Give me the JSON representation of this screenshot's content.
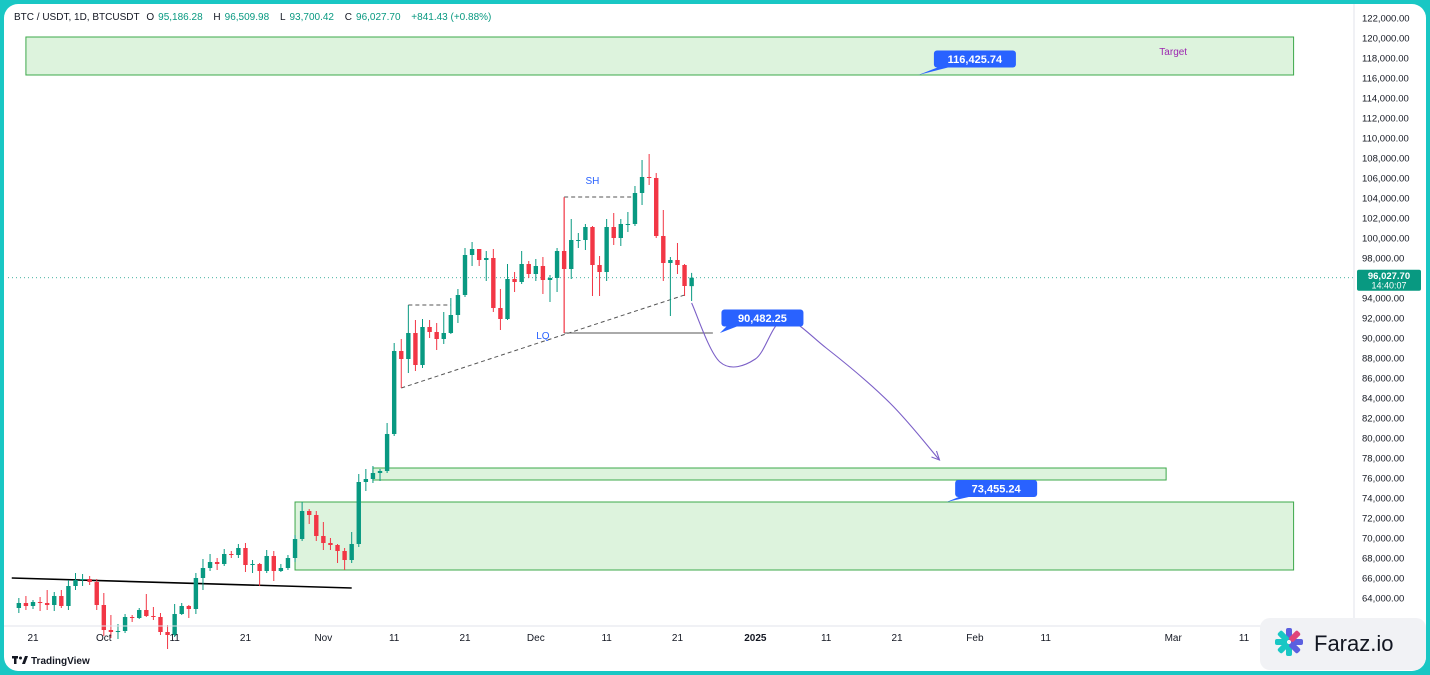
{
  "header": {
    "symbol": "BTC / USDT, 1D, BTCUSDT",
    "open_label": "O",
    "open": "95,186.28",
    "high_label": "H",
    "high": "96,509.98",
    "low_label": "L",
    "low": "93,700.42",
    "close_label": "C",
    "close": "96,027.70",
    "change": "+841.43 (+0.88%)"
  },
  "brand": {
    "tradingview": "TradingView",
    "watermark": "Faraz.io",
    "watermark_icon": "faraz-logo-icon",
    "tv_icon": "tradingview-logo-icon"
  },
  "colors": {
    "up": "#089981",
    "down": "#f23645",
    "zone_fill": "#d9f2d9",
    "zone_stroke": "#3ca84a",
    "label_bg": "#2962ff",
    "path": "#7b5fc7",
    "target_text": "#9c27b0",
    "lq_text": "#2962ff",
    "sh_text": "#2962ff"
  },
  "chart_data": {
    "type": "candlestick",
    "yaxis": {
      "range": [
        63000,
        122500
      ],
      "ticks": [
        "64,000.00",
        "66,000.00",
        "68,000.00",
        "70,000.00",
        "72,000.00",
        "74,000.00",
        "76,000.00",
        "78,000.00",
        "80,000.00",
        "82,000.00",
        "84,000.00",
        "86,000.00",
        "88,000.00",
        "90,000.00",
        "92,000.00",
        "94,000.00",
        "96,000.00",
        "98,000.00",
        "100,000.00",
        "102,000.00",
        "104,000.00",
        "106,000.00",
        "108,000.00",
        "110,000.00",
        "112,000.00",
        "114,000.00",
        "116,000.00",
        "118,000.00",
        "120,000.00",
        "122,000.00"
      ]
    },
    "xaxis": {
      "ticks": [
        {
          "date": "2024-09-21",
          "label": "21"
        },
        {
          "date": "2024-10-01",
          "label": "Oct"
        },
        {
          "date": "2024-10-11",
          "label": "11"
        },
        {
          "date": "2024-10-21",
          "label": "21"
        },
        {
          "date": "2024-11-01",
          "label": "Nov"
        },
        {
          "date": "2024-11-11",
          "label": "11"
        },
        {
          "date": "2024-11-21",
          "label": "21"
        },
        {
          "date": "2024-12-01",
          "label": "Dec"
        },
        {
          "date": "2024-12-11",
          "label": "11"
        },
        {
          "date": "2024-12-21",
          "label": "21"
        },
        {
          "date": "2025-01-01",
          "label": "2025",
          "bold": true
        },
        {
          "date": "2025-01-11",
          "label": "11"
        },
        {
          "date": "2025-01-21",
          "label": "21"
        },
        {
          "date": "2025-02-01",
          "label": "Feb"
        },
        {
          "date": "2025-02-11",
          "label": "11"
        },
        {
          "date": "2025-03-01",
          "label": "Mar"
        },
        {
          "date": "2025-03-11",
          "label": "11"
        }
      ]
    },
    "candles": [
      {
        "d": "2024-09-19",
        "o": 63000,
        "h": 64000,
        "l": 62500,
        "c": 63500
      },
      {
        "d": "2024-09-20",
        "o": 63500,
        "h": 64200,
        "l": 62800,
        "c": 63200
      },
      {
        "d": "2024-09-21",
        "o": 63200,
        "h": 63800,
        "l": 62900,
        "c": 63600
      },
      {
        "d": "2024-09-22",
        "o": 63600,
        "h": 64100,
        "l": 62700,
        "c": 63500
      },
      {
        "d": "2024-09-23",
        "o": 63500,
        "h": 64800,
        "l": 62800,
        "c": 63300
      },
      {
        "d": "2024-09-24",
        "o": 63300,
        "h": 64600,
        "l": 62700,
        "c": 64200
      },
      {
        "d": "2024-09-25",
        "o": 64200,
        "h": 64800,
        "l": 63000,
        "c": 63200
      },
      {
        "d": "2024-09-26",
        "o": 63200,
        "h": 65800,
        "l": 62800,
        "c": 65200
      },
      {
        "d": "2024-09-27",
        "o": 65200,
        "h": 66500,
        "l": 64800,
        "c": 65800
      },
      {
        "d": "2024-09-28",
        "o": 65800,
        "h": 66400,
        "l": 65200,
        "c": 65900
      },
      {
        "d": "2024-09-29",
        "o": 65900,
        "h": 66200,
        "l": 65300,
        "c": 65600
      },
      {
        "d": "2024-09-30",
        "o": 65600,
        "h": 65900,
        "l": 62800,
        "c": 63300
      },
      {
        "d": "2024-10-01",
        "o": 63300,
        "h": 64500,
        "l": 60200,
        "c": 60800
      },
      {
        "d": "2024-10-02",
        "o": 60800,
        "h": 62300,
        "l": 60000,
        "c": 60600
      },
      {
        "d": "2024-10-03",
        "o": 60600,
        "h": 61400,
        "l": 59900,
        "c": 60700
      },
      {
        "d": "2024-10-04",
        "o": 60700,
        "h": 62400,
        "l": 60500,
        "c": 62100
      },
      {
        "d": "2024-10-05",
        "o": 62100,
        "h": 62300,
        "l": 61600,
        "c": 62000
      },
      {
        "d": "2024-10-06",
        "o": 62000,
        "h": 63000,
        "l": 61900,
        "c": 62800
      },
      {
        "d": "2024-10-07",
        "o": 62800,
        "h": 64400,
        "l": 62100,
        "c": 62200
      },
      {
        "d": "2024-10-08",
        "o": 62200,
        "h": 63100,
        "l": 61800,
        "c": 62100
      },
      {
        "d": "2024-10-09",
        "o": 62100,
        "h": 62500,
        "l": 60300,
        "c": 60600
      },
      {
        "d": "2024-10-10",
        "o": 60600,
        "h": 61300,
        "l": 58900,
        "c": 60300
      },
      {
        "d": "2024-10-11",
        "o": 60300,
        "h": 63400,
        "l": 60100,
        "c": 62400
      },
      {
        "d": "2024-10-12",
        "o": 62400,
        "h": 63500,
        "l": 62300,
        "c": 63200
      },
      {
        "d": "2024-10-13",
        "o": 63200,
        "h": 63300,
        "l": 62000,
        "c": 62900
      },
      {
        "d": "2024-10-14",
        "o": 62900,
        "h": 66500,
        "l": 62400,
        "c": 66000
      },
      {
        "d": "2024-10-15",
        "o": 66000,
        "h": 67900,
        "l": 64800,
        "c": 67000
      },
      {
        "d": "2024-10-16",
        "o": 67000,
        "h": 68400,
        "l": 66700,
        "c": 67600
      },
      {
        "d": "2024-10-17",
        "o": 67600,
        "h": 68000,
        "l": 66800,
        "c": 67400
      },
      {
        "d": "2024-10-18",
        "o": 67400,
        "h": 68900,
        "l": 67200,
        "c": 68400
      },
      {
        "d": "2024-10-19",
        "o": 68400,
        "h": 68700,
        "l": 68000,
        "c": 68300
      },
      {
        "d": "2024-10-20",
        "o": 68300,
        "h": 69400,
        "l": 68000,
        "c": 69000
      },
      {
        "d": "2024-10-21",
        "o": 69000,
        "h": 69500,
        "l": 66600,
        "c": 67300
      },
      {
        "d": "2024-10-22",
        "o": 67300,
        "h": 67800,
        "l": 66500,
        "c": 67400
      },
      {
        "d": "2024-10-23",
        "o": 67400,
        "h": 67500,
        "l": 65200,
        "c": 66700
      },
      {
        "d": "2024-10-24",
        "o": 66700,
        "h": 68800,
        "l": 66500,
        "c": 68200
      },
      {
        "d": "2024-10-25",
        "o": 68200,
        "h": 68700,
        "l": 65700,
        "c": 66700
      },
      {
        "d": "2024-10-26",
        "o": 66700,
        "h": 67400,
        "l": 66600,
        "c": 67000
      },
      {
        "d": "2024-10-27",
        "o": 67000,
        "h": 68300,
        "l": 66800,
        "c": 68000
      },
      {
        "d": "2024-10-28",
        "o": 68000,
        "h": 70300,
        "l": 67600,
        "c": 69900
      },
      {
        "d": "2024-10-29",
        "o": 69900,
        "h": 73600,
        "l": 69700,
        "c": 72700
      },
      {
        "d": "2024-10-30",
        "o": 72700,
        "h": 72900,
        "l": 71400,
        "c": 72300
      },
      {
        "d": "2024-10-31",
        "o": 72300,
        "h": 72700,
        "l": 69700,
        "c": 70200
      },
      {
        "d": "2024-11-01",
        "o": 70200,
        "h": 71600,
        "l": 68800,
        "c": 69500
      },
      {
        "d": "2024-11-02",
        "o": 69500,
        "h": 70000,
        "l": 68800,
        "c": 69300
      },
      {
        "d": "2024-11-03",
        "o": 69300,
        "h": 69400,
        "l": 67500,
        "c": 68700
      },
      {
        "d": "2024-11-04",
        "o": 68700,
        "h": 69000,
        "l": 66800,
        "c": 67800
      },
      {
        "d": "2024-11-05",
        "o": 67800,
        "h": 70600,
        "l": 67500,
        "c": 69400
      },
      {
        "d": "2024-11-06",
        "o": 69400,
        "h": 76400,
        "l": 69100,
        "c": 75600
      },
      {
        "d": "2024-11-07",
        "o": 75600,
        "h": 76900,
        "l": 74700,
        "c": 75900
      },
      {
        "d": "2024-11-08",
        "o": 75900,
        "h": 77200,
        "l": 75500,
        "c": 76500
      },
      {
        "d": "2024-11-09",
        "o": 76500,
        "h": 76900,
        "l": 75700,
        "c": 76700
      },
      {
        "d": "2024-11-10",
        "o": 76700,
        "h": 81500,
        "l": 76500,
        "c": 80400
      },
      {
        "d": "2024-11-11",
        "o": 80400,
        "h": 89500,
        "l": 80200,
        "c": 88700
      },
      {
        "d": "2024-11-12",
        "o": 88700,
        "h": 89900,
        "l": 85000,
        "c": 87900
      },
      {
        "d": "2024-11-13",
        "o": 87900,
        "h": 93300,
        "l": 86500,
        "c": 90500
      },
      {
        "d": "2024-11-14",
        "o": 90500,
        "h": 91800,
        "l": 86700,
        "c": 87300
      },
      {
        "d": "2024-11-15",
        "o": 87300,
        "h": 91900,
        "l": 87000,
        "c": 91100
      },
      {
        "d": "2024-11-16",
        "o": 91100,
        "h": 91800,
        "l": 90000,
        "c": 90600
      },
      {
        "d": "2024-11-17",
        "o": 90600,
        "h": 91500,
        "l": 88800,
        "c": 89900
      },
      {
        "d": "2024-11-18",
        "o": 89900,
        "h": 92600,
        "l": 89400,
        "c": 90500
      },
      {
        "d": "2024-11-19",
        "o": 90500,
        "h": 94000,
        "l": 90400,
        "c": 92300
      },
      {
        "d": "2024-11-20",
        "o": 92300,
        "h": 94900,
        "l": 91500,
        "c": 94300
      },
      {
        "d": "2024-11-21",
        "o": 94300,
        "h": 99000,
        "l": 94100,
        "c": 98300
      },
      {
        "d": "2024-11-22",
        "o": 98300,
        "h": 99600,
        "l": 97200,
        "c": 98900
      },
      {
        "d": "2024-11-23",
        "o": 98900,
        "h": 98900,
        "l": 97200,
        "c": 97800
      },
      {
        "d": "2024-11-24",
        "o": 97800,
        "h": 98700,
        "l": 95700,
        "c": 98000
      },
      {
        "d": "2024-11-25",
        "o": 98000,
        "h": 98900,
        "l": 92600,
        "c": 93000
      },
      {
        "d": "2024-11-26",
        "o": 93000,
        "h": 94900,
        "l": 90800,
        "c": 91900
      },
      {
        "d": "2024-11-27",
        "o": 91900,
        "h": 97400,
        "l": 91800,
        "c": 95900
      },
      {
        "d": "2024-11-28",
        "o": 95900,
        "h": 96600,
        "l": 94600,
        "c": 95600
      },
      {
        "d": "2024-11-29",
        "o": 95600,
        "h": 98700,
        "l": 95400,
        "c": 97400
      },
      {
        "d": "2024-11-30",
        "o": 97400,
        "h": 97700,
        "l": 96000,
        "c": 96400
      },
      {
        "d": "2024-12-01",
        "o": 96400,
        "h": 97900,
        "l": 95700,
        "c": 97200
      },
      {
        "d": "2024-12-02",
        "o": 97200,
        "h": 98100,
        "l": 94400,
        "c": 95800
      },
      {
        "d": "2024-12-03",
        "o": 95800,
        "h": 96300,
        "l": 93600,
        "c": 96000
      },
      {
        "d": "2024-12-04",
        "o": 96000,
        "h": 99000,
        "l": 94600,
        "c": 98700
      },
      {
        "d": "2024-12-05",
        "o": 98700,
        "h": 104000,
        "l": 90500,
        "c": 96900
      },
      {
        "d": "2024-12-06",
        "o": 96900,
        "h": 101900,
        "l": 95900,
        "c": 99800
      },
      {
        "d": "2024-12-07",
        "o": 99800,
        "h": 100500,
        "l": 99000,
        "c": 99800
      },
      {
        "d": "2024-12-08",
        "o": 99800,
        "h": 101400,
        "l": 98800,
        "c": 101100
      },
      {
        "d": "2024-12-09",
        "o": 101100,
        "h": 101200,
        "l": 94200,
        "c": 97300
      },
      {
        "d": "2024-12-10",
        "o": 97300,
        "h": 98200,
        "l": 94200,
        "c": 96600
      },
      {
        "d": "2024-12-11",
        "o": 96600,
        "h": 101900,
        "l": 95700,
        "c": 101100
      },
      {
        "d": "2024-12-12",
        "o": 101100,
        "h": 102500,
        "l": 99300,
        "c": 100000
      },
      {
        "d": "2024-12-13",
        "o": 100000,
        "h": 101900,
        "l": 99200,
        "c": 101400
      },
      {
        "d": "2024-12-14",
        "o": 101400,
        "h": 102600,
        "l": 100600,
        "c": 101400
      },
      {
        "d": "2024-12-15",
        "o": 101400,
        "h": 105200,
        "l": 101200,
        "c": 104500
      },
      {
        "d": "2024-12-16",
        "o": 104500,
        "h": 107800,
        "l": 103300,
        "c": 106100
      },
      {
        "d": "2024-12-17",
        "o": 106100,
        "h": 108400,
        "l": 105300,
        "c": 106000
      },
      {
        "d": "2024-12-18",
        "o": 106000,
        "h": 106500,
        "l": 100000,
        "c": 100200
      },
      {
        "d": "2024-12-19",
        "o": 100200,
        "h": 102800,
        "l": 95700,
        "c": 97500
      },
      {
        "d": "2024-12-20",
        "o": 97500,
        "h": 98100,
        "l": 92200,
        "c": 97800
      },
      {
        "d": "2024-12-21",
        "o": 97800,
        "h": 99500,
        "l": 96400,
        "c": 97300
      },
      {
        "d": "2024-12-22",
        "o": 97300,
        "h": 97400,
        "l": 94200,
        "c": 95200
      },
      {
        "d": "2024-12-23",
        "o": 95186.28,
        "h": 96509.98,
        "l": 93700.42,
        "c": 96027.7
      }
    ],
    "current_price": {
      "price": 96027.7,
      "label": "96,027.70",
      "countdown": "14:40:07"
    },
    "zones": [
      {
        "name": "target-zone",
        "from": "2024-09-20",
        "to": "2025-03-18",
        "low": 116300,
        "high": 120100
      },
      {
        "name": "upper-support-zone",
        "from": "2024-11-08",
        "to": "2025-02-28",
        "low": 75800,
        "high": 77000
      },
      {
        "name": "demand-zone",
        "from": "2024-10-28",
        "to": "2025-03-18",
        "low": 66800,
        "high": 73600
      }
    ],
    "trendlines": [
      {
        "name": "black-trendline",
        "from": {
          "d": "2024-09-18",
          "p": 66000
        },
        "to": {
          "d": "2024-11-05",
          "p": 65000
        },
        "style": "solid"
      },
      {
        "name": "lq-trendline",
        "from": {
          "d": "2024-11-12",
          "p": 85000
        },
        "to": {
          "d": "2024-12-22",
          "p": 94300
        },
        "style": "dashed"
      },
      {
        "name": "lq-level",
        "from": {
          "d": "2024-12-05",
          "p": 90500
        },
        "to": {
          "d": "2024-12-26",
          "p": 90500
        },
        "style": "solid"
      },
      {
        "name": "sh-level",
        "from": {
          "d": "2024-12-05",
          "p": 104100
        },
        "to": {
          "d": "2024-12-15",
          "p": 104100
        },
        "style": "dashed"
      },
      {
        "name": "sh-vertical",
        "from": {
          "d": "2024-12-05",
          "p": 104100
        },
        "to": {
          "d": "2024-12-05",
          "p": 90500
        },
        "style": "solid"
      },
      {
        "name": "nov-high-level",
        "from": {
          "d": "2024-11-13",
          "p": 93300
        },
        "to": {
          "d": "2024-11-19",
          "p": 93300
        },
        "style": "dashed"
      }
    ],
    "price_labels": [
      {
        "name": "target-price-label",
        "text": "116,425.74",
        "d": "2025-02-01",
        "p": 117900,
        "anchor": {
          "d": "2025-01-24",
          "p": 116300
        }
      },
      {
        "name": "mid-price-label",
        "text": "90,482.25",
        "d": "2025-01-02",
        "p": 92000,
        "anchor": {
          "d": "2024-12-27",
          "p": 90500
        }
      },
      {
        "name": "low-price-label",
        "text": "73,455.24",
        "d": "2025-02-04",
        "p": 74950,
        "anchor": {
          "d": "2025-01-28",
          "p": 73600
        }
      }
    ],
    "annotations": [
      {
        "name": "target-text",
        "text": "Target",
        "d": "2025-03-01",
        "p": 118300
      },
      {
        "name": "sh-text",
        "text": "SH",
        "d": "2024-12-09",
        "p": 105400
      },
      {
        "name": "lq-text",
        "text": "LQ",
        "d": "2024-12-02",
        "p": 89900
      }
    ],
    "projection_path": [
      {
        "d": "2024-12-23",
        "p": 93500
      },
      {
        "d": "2024-12-27",
        "p": 87600
      },
      {
        "d": "2025-01-01",
        "p": 87900
      },
      {
        "d": "2025-01-05",
        "p": 91800
      },
      {
        "d": "2025-01-11",
        "p": 89000
      },
      {
        "d": "2025-01-20",
        "p": 83500
      },
      {
        "d": "2025-01-27",
        "p": 77800
      }
    ]
  }
}
